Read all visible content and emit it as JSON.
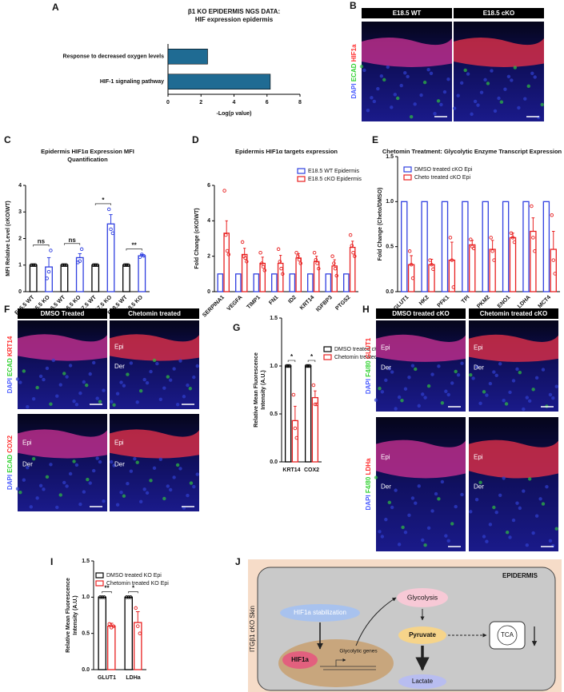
{
  "panel_letters": [
    "A",
    "B",
    "C",
    "D",
    "E",
    "F",
    "G",
    "H",
    "I",
    "J"
  ],
  "chart_data": [
    {
      "type": "barh",
      "title": [
        "β1 KO EPIDERMIS NGS DATA:",
        "HIF expression epidermis"
      ],
      "categories": [
        "Response to decreased oxygen levels",
        "HIF-1 signaling pathway"
      ],
      "values": [
        2.4,
        6.2
      ],
      "color": "#1f6b93",
      "xlim": [
        0,
        8
      ],
      "xticks": [
        0,
        2,
        4,
        6,
        8
      ],
      "xlabel": "-Log(p value)"
    },
    {
      "type": "bar",
      "title": [
        "Epidermis HIF1α Expression MFI",
        "Quantification"
      ],
      "categories": [
        "E15.5 WT",
        "E15.5 KO",
        "E16.5 WT",
        "E16.5 KO",
        "E17.5 WT",
        "E17.5 KO",
        "E18.5 WT",
        "E18.5 KO"
      ],
      "values": [
        1,
        0.93,
        1,
        1.28,
        1,
        2.55,
        1,
        1.35
      ],
      "errors": [
        0,
        0.35,
        0,
        0.15,
        0,
        0.35,
        0,
        0.05
      ],
      "points": [
        [
          1,
          1,
          1
        ],
        [
          0.5,
          0.75,
          1.55
        ],
        [
          1,
          1,
          1
        ],
        [
          1.1,
          1.15,
          1.6
        ],
        [
          1,
          1,
          1
        ],
        [
          3.1,
          2.35,
          2.2
        ],
        [
          1,
          1,
          1
        ],
        [
          1.3,
          1.4,
          1.35
        ]
      ],
      "colors": [
        "#000000",
        "#2f3fe0",
        "#000000",
        "#2f3fe0",
        "#000000",
        "#2f3fe0",
        "#000000",
        "#2f3fe0"
      ],
      "significance": [
        null,
        "ns",
        null,
        "ns",
        null,
        "*",
        null,
        "**"
      ],
      "ylim": [
        0,
        4
      ],
      "yticks": [
        0,
        1,
        2,
        3,
        4
      ],
      "ylabel": "MFI Relative Level (cKO/WT)"
    },
    {
      "type": "bar",
      "title": [
        "Epidermis HIF1α targets expression"
      ],
      "categories": [
        "SERPINA1",
        "VEGFA",
        "TIMP1",
        "FN1",
        "ID2",
        "KRT14",
        "IGFBP3",
        "PTGS2"
      ],
      "series": [
        {
          "name": "E18.5 WT Epidermis",
          "color": "#2f3fe0",
          "values": [
            1,
            1,
            1,
            1,
            1,
            1,
            1,
            1
          ]
        },
        {
          "name": "E18.5 cKO Epidermis",
          "color": "#e82020",
          "values": [
            3.3,
            2.1,
            1.6,
            1.6,
            1.9,
            1.7,
            1.45,
            2.5
          ],
          "errors": [
            0.7,
            0.35,
            0.35,
            0.45,
            0.25,
            0.3,
            0.35,
            0.35
          ],
          "points": [
            [
              5.7,
              3.2,
              2.3,
              2.1
            ],
            [
              2.8,
              2.0,
              1.9,
              1.7
            ],
            [
              2.2,
              1.6,
              1.4,
              1.2
            ],
            [
              2.4,
              1.7,
              1.3,
              1.0
            ],
            [
              2.2,
              2.0,
              1.8,
              1.6
            ],
            [
              2.2,
              1.8,
              1.6,
              1.3
            ],
            [
              2.0,
              1.6,
              1.3,
              0.9
            ],
            [
              3.2,
              2.6,
              2.2,
              2.0
            ]
          ]
        }
      ],
      "ylim": [
        0,
        6
      ],
      "yticks": [
        0,
        2,
        4,
        6
      ],
      "ylabel": "Fold Change (cKO/WT)"
    },
    {
      "type": "bar",
      "title": [
        "Chetomin Treatment: Glycolytic Enzyme Transcript Expression"
      ],
      "categories": [
        "GLUT1",
        "HK2",
        "PFK1",
        "TPI",
        "PKM2",
        "ENO1",
        "LDHA",
        "MCT4"
      ],
      "series": [
        {
          "name": "DMSO treated cKO Epi",
          "color": "#2f3fe0",
          "values": [
            1,
            1,
            1,
            1,
            1,
            1,
            1,
            1
          ]
        },
        {
          "name": "Cheto treated cKO Epi",
          "color": "#e82020",
          "values": [
            0.3,
            0.3,
            0.35,
            0.52,
            0.47,
            0.6,
            0.67,
            0.47
          ],
          "errors": [
            0.1,
            0.06,
            0.2,
            0.05,
            0.1,
            0.05,
            0.15,
            0.2
          ],
          "points": [
            [
              0.45,
              0.3,
              0.15
            ],
            [
              0.35,
              0.3,
              0.25
            ],
            [
              0.6,
              0.35,
              0.05
            ],
            [
              0.58,
              0.5,
              0.48
            ],
            [
              0.6,
              0.45,
              0.35
            ],
            [
              0.65,
              0.6,
              0.55
            ],
            [
              0.95,
              0.6,
              0.45
            ],
            [
              0.85,
              0.35,
              0.2
            ]
          ]
        }
      ],
      "ylim": [
        0,
        1.5
      ],
      "yticks": [
        {
          "value": 0,
          "label": "0.0"
        },
        {
          "value": 0.5,
          "label": "0.5"
        },
        {
          "value": 1,
          "label": "1.0"
        },
        {
          "value": 1.5,
          "label": "1.5"
        }
      ],
      "ylabel": "Fold Change (Cheto/DMSO)"
    },
    {
      "type": "bar",
      "categories": [
        "KRT14",
        "COX2"
      ],
      "series": [
        {
          "name": "DMSO treated cKO Epi",
          "color": "#000000",
          "values": [
            1,
            1
          ],
          "points": [
            [
              1,
              1,
              1
            ],
            [
              1,
              1,
              1
            ]
          ]
        },
        {
          "name": "Chetomin treated cKO Epi",
          "color": "#e82020",
          "values": [
            0.43,
            0.67
          ],
          "errors": [
            0.15,
            0.07
          ],
          "points": [
            [
              0.7,
              0.35,
              0.25
            ],
            [
              0.8,
              0.6,
              0.6
            ]
          ]
        }
      ],
      "significance": [
        "*",
        "*"
      ],
      "ylim": [
        0,
        1.5
      ],
      "yticks": [
        {
          "value": 0,
          "label": "0.0"
        },
        {
          "value": 0.5,
          "label": "0.5"
        },
        {
          "value": 1,
          "label": "1.0"
        },
        {
          "value": 1.5,
          "label": "1.5"
        }
      ],
      "ylabel": [
        "Relative Mean Fluorescence",
        "Intensity (A.U.)"
      ]
    },
    {
      "type": "bar",
      "categories": [
        "GLUT1",
        "LDHa"
      ],
      "series": [
        {
          "name": "DMSO treated KO Epi",
          "color": "#000000",
          "values": [
            1,
            1
          ],
          "points": [
            [
              1,
              1,
              1
            ],
            [
              1,
              1,
              1
            ]
          ]
        },
        {
          "name": "Chetomin treated KO Epi",
          "color": "#e82020",
          "values": [
            0.6,
            0.65
          ],
          "errors": [
            0.04,
            0.15
          ],
          "points": [
            [
              0.63,
              0.58,
              0.6
            ],
            [
              0.85,
              0.6,
              0.5
            ]
          ]
        }
      ],
      "significance": [
        "**",
        "*"
      ],
      "ylim": [
        0,
        1.5
      ],
      "yticks": [
        {
          "value": 0,
          "label": "0.0"
        },
        {
          "value": 0.5,
          "label": "0.5"
        },
        {
          "value": 1,
          "label": "1.0"
        },
        {
          "value": 1.5,
          "label": "1.5"
        }
      ],
      "ylabel": [
        "Relative Mean Fluorescence",
        "Intensity (A.U.)"
      ]
    }
  ],
  "images": [
    {
      "columns": [
        "E18.5 WT",
        "E18.5 cKO"
      ],
      "rows": [
        {
          "stain": [
            "DAPI",
            "ECAD",
            "HIF1a"
          ]
        }
      ]
    },
    {
      "columns": [
        "DMSO Treated",
        "Chetomin treated"
      ],
      "rows": [
        {
          "stain": [
            "DAPI",
            "ECAD",
            "KRT14"
          ],
          "regions": [
            null,
            [
              "Epi",
              "Der"
            ]
          ]
        },
        {
          "stain": [
            "DAPI",
            "ECAD",
            "COX2"
          ],
          "regions": [
            [
              "Epi",
              "Der"
            ],
            [
              "Epi",
              "Der"
            ]
          ]
        }
      ]
    },
    {
      "columns": [
        "DMSO treated cKO",
        "Chetomin treated cKO"
      ],
      "rows": [
        {
          "stain": [
            "DAPI",
            "F4/80",
            "GLUT1"
          ],
          "regions": [
            [
              "Epi",
              "Der"
            ],
            [
              "Epi",
              "Der"
            ]
          ]
        },
        {
          "stain": [
            "DAPI",
            "F4/80",
            "LDHa"
          ],
          "regions": [
            [
              "Epi",
              "Der"
            ],
            [
              "Epi",
              "Der"
            ]
          ]
        }
      ]
    }
  ],
  "diagram": {
    "compartment": "EPIDERMIS",
    "side_label": "ITGβ1 cKO Skin",
    "stabilization": "HIF1a stabilization",
    "factor": "HIF1a",
    "genes": "Glycolytic genes",
    "glycolysis": "Glycolysis",
    "pyruvate": "Pyruvate",
    "tca": "TCA",
    "lactate": "Lactate"
  }
}
